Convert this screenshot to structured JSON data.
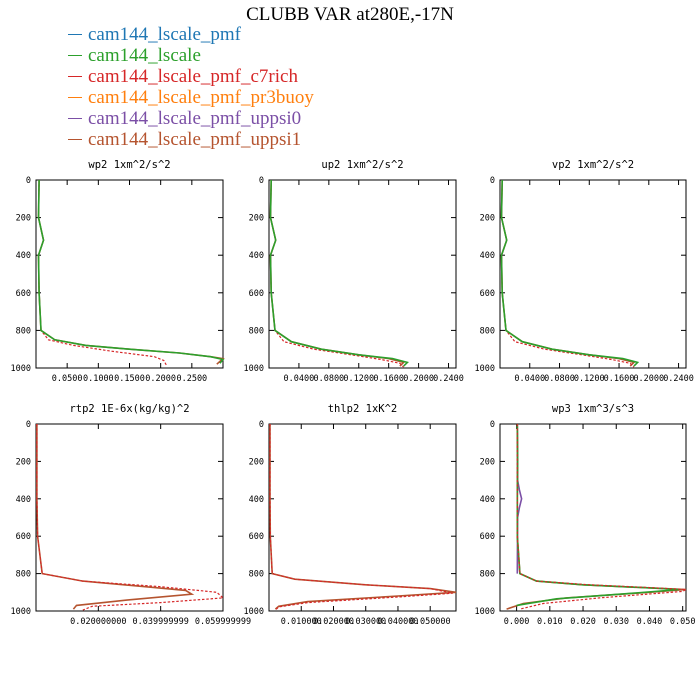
{
  "title": "CLUBB VAR at280E,-17N",
  "legend": [
    {
      "label": "cam144_lscale_pmf",
      "color": "#1f77b4"
    },
    {
      "label": "cam144_lscale",
      "color": "#2ca02c"
    },
    {
      "label": "cam144_lscale_pmf_c7rich",
      "color": "#d62728"
    },
    {
      "label": "cam144_lscale_pmf_pr3buoy",
      "color": "#ff7f0e"
    },
    {
      "label": "cam144_lscale_pmf_uppsi0",
      "color": "#7b4fa6"
    },
    {
      "label": "cam144_lscale_pmf_uppsi1",
      "color": "#b5542f"
    }
  ],
  "chart_data": [
    {
      "type": "line",
      "title": "wp2   1xm^2/s^2",
      "xlim": [
        0,
        0.3
      ],
      "ylim": [
        1000,
        0
      ],
      "xticks": [
        0.05,
        0.1,
        0.15,
        0.2,
        0.25
      ],
      "xtick_labels": [
        "0.0500",
        "0.1000",
        "0.1500",
        "0.2000",
        "0.2500"
      ],
      "yticks": [
        0,
        200,
        400,
        600,
        800,
        1000
      ],
      "series": [
        {
          "color": "#b5542f",
          "dash": false,
          "x": [
            0.005,
            0.004,
            0.012,
            0.004,
            0.005,
            0.008,
            0.03,
            0.08,
            0.15,
            0.23,
            0.28,
            0.3,
            0.29
          ],
          "y": [
            0,
            200,
            320,
            400,
            600,
            800,
            850,
            880,
            900,
            920,
            940,
            950,
            980
          ]
        },
        {
          "color": "#d62728",
          "dash": true,
          "x": [
            0.005,
            0.004,
            0.012,
            0.004,
            0.005,
            0.008,
            0.02,
            0.06,
            0.12,
            0.19,
            0.205,
            0.21
          ],
          "y": [
            0,
            200,
            320,
            400,
            600,
            800,
            850,
            880,
            910,
            940,
            960,
            990
          ]
        },
        {
          "color": "#2ca02c",
          "dash": false,
          "x": [
            0.005,
            0.004,
            0.012,
            0.004,
            0.005,
            0.008,
            0.03,
            0.08,
            0.15,
            0.23,
            0.28,
            0.3,
            0.295
          ],
          "y": [
            0,
            200,
            320,
            400,
            600,
            800,
            850,
            880,
            900,
            920,
            940,
            955,
            975
          ]
        }
      ]
    },
    {
      "type": "line",
      "title": "up2   1xm^2/s^2",
      "xlim": [
        0,
        0.25
      ],
      "ylim": [
        1000,
        0
      ],
      "xticks": [
        0.04,
        0.08,
        0.12,
        0.16,
        0.2,
        0.24
      ],
      "xtick_labels": [
        "0.0400",
        "0.0800",
        "0.1200",
        "0.1600",
        "0.2000",
        "0.2400"
      ],
      "yticks": [
        0,
        200,
        400,
        600,
        800,
        1000
      ],
      "series": [
        {
          "color": "#b5542f",
          "dash": false,
          "x": [
            0.003,
            0.002,
            0.009,
            0.002,
            0.003,
            0.008,
            0.03,
            0.07,
            0.12,
            0.16,
            0.18,
            0.175
          ],
          "y": [
            0,
            200,
            320,
            400,
            600,
            800,
            860,
            900,
            930,
            950,
            970,
            990
          ]
        },
        {
          "color": "#d62728",
          "dash": true,
          "x": [
            0.003,
            0.002,
            0.009,
            0.002,
            0.003,
            0.008,
            0.02,
            0.06,
            0.11,
            0.15,
            0.175,
            0.18
          ],
          "y": [
            0,
            200,
            320,
            400,
            600,
            800,
            860,
            900,
            930,
            955,
            975,
            995
          ]
        },
        {
          "color": "#2ca02c",
          "dash": false,
          "x": [
            0.003,
            0.002,
            0.009,
            0.002,
            0.003,
            0.008,
            0.03,
            0.07,
            0.12,
            0.165,
            0.185,
            0.18
          ],
          "y": [
            0,
            200,
            320,
            400,
            600,
            800,
            860,
            900,
            930,
            950,
            970,
            990
          ]
        }
      ]
    },
    {
      "type": "line",
      "title": "vp2   1xm^2/s^2",
      "xlim": [
        0,
        0.25
      ],
      "ylim": [
        1000,
        0
      ],
      "xticks": [
        0.04,
        0.08,
        0.12,
        0.16,
        0.2,
        0.24
      ],
      "xtick_labels": [
        "0.0400",
        "0.0800",
        "0.1200",
        "0.1600",
        "0.2000",
        "0.2400"
      ],
      "yticks": [
        0,
        200,
        400,
        600,
        800,
        1000
      ],
      "series": [
        {
          "color": "#b5542f",
          "dash": false,
          "x": [
            0.003,
            0.002,
            0.009,
            0.002,
            0.003,
            0.008,
            0.03,
            0.07,
            0.12,
            0.16,
            0.18,
            0.175
          ],
          "y": [
            0,
            200,
            320,
            400,
            600,
            800,
            860,
            900,
            930,
            950,
            970,
            990
          ]
        },
        {
          "color": "#d62728",
          "dash": true,
          "x": [
            0.003,
            0.002,
            0.009,
            0.002,
            0.003,
            0.008,
            0.02,
            0.06,
            0.11,
            0.15,
            0.175,
            0.18
          ],
          "y": [
            0,
            200,
            320,
            400,
            600,
            800,
            860,
            900,
            930,
            955,
            975,
            995
          ]
        },
        {
          "color": "#2ca02c",
          "dash": false,
          "x": [
            0.003,
            0.002,
            0.009,
            0.002,
            0.003,
            0.008,
            0.03,
            0.07,
            0.12,
            0.165,
            0.185,
            0.18
          ],
          "y": [
            0,
            200,
            320,
            400,
            600,
            800,
            860,
            900,
            930,
            950,
            970,
            990
          ]
        }
      ]
    },
    {
      "type": "line",
      "title": "rtp2   1E-6x(kg/kg)^2",
      "xlim": [
        0,
        0.06
      ],
      "ylim": [
        1000,
        0
      ],
      "xticks": [
        0.02,
        0.04,
        0.06
      ],
      "xtick_labels": [
        "0.020000000",
        "0.039999999",
        "0.059999999"
      ],
      "yticks": [
        0,
        200,
        400,
        600,
        800,
        1000
      ],
      "series": [
        {
          "color": "#b5542f",
          "dash": false,
          "x": [
            0.0003,
            0.0003,
            0.0003,
            0.0005,
            0.002,
            0.015,
            0.035,
            0.048,
            0.05,
            0.03,
            0.013,
            0.012
          ],
          "y": [
            0,
            200,
            400,
            600,
            800,
            840,
            870,
            890,
            910,
            940,
            970,
            990
          ]
        },
        {
          "color": "#d62728",
          "dash": true,
          "x": [
            0.0003,
            0.0003,
            0.0003,
            0.0005,
            0.002,
            0.015,
            0.04,
            0.058,
            0.06,
            0.04,
            0.018,
            0.015
          ],
          "y": [
            0,
            200,
            400,
            600,
            800,
            840,
            870,
            900,
            930,
            955,
            975,
            995
          ]
        }
      ]
    },
    {
      "type": "line",
      "title": "thlp2   1xK^2",
      "xlim": [
        0,
        0.058
      ],
      "ylim": [
        1000,
        0
      ],
      "xticks": [
        0.01,
        0.02,
        0.03,
        0.04,
        0.05
      ],
      "xtick_labels": [
        "0.010000",
        "0.020000",
        "0.030000",
        "0.040000",
        "0.050000"
      ],
      "yticks": [
        0,
        200,
        400,
        600,
        800,
        1000
      ],
      "series": [
        {
          "color": "#b5542f",
          "dash": false,
          "x": [
            0.0003,
            0.0003,
            0.0004,
            0.001,
            0.008,
            0.03,
            0.05,
            0.058,
            0.04,
            0.012,
            0.003,
            0.002
          ],
          "y": [
            0,
            400,
            600,
            800,
            830,
            860,
            880,
            900,
            920,
            950,
            975,
            990
          ]
        },
        {
          "color": "#d62728",
          "dash": true,
          "x": [
            0.0003,
            0.0003,
            0.0004,
            0.001,
            0.008,
            0.03,
            0.05,
            0.057,
            0.04,
            0.012,
            0.003,
            0.002
          ],
          "y": [
            0,
            400,
            600,
            800,
            830,
            860,
            880,
            905,
            925,
            955,
            978,
            995
          ]
        }
      ]
    },
    {
      "type": "line",
      "title": "wp3   1xm^3/s^3",
      "xlim": [
        -0.005,
        0.051
      ],
      "ylim": [
        1000,
        0
      ],
      "xticks": [
        0.0,
        0.01,
        0.02,
        0.03,
        0.04,
        0.05
      ],
      "xtick_labels": [
        "0.000",
        "0.010",
        "0.020",
        "0.030",
        "0.040",
        "0.050"
      ],
      "yticks": [
        0,
        200,
        400,
        600,
        800,
        1000
      ],
      "series": [
        {
          "color": "#7b4fa6",
          "dash": false,
          "x": [
            0.0002,
            0.0003,
            0.0008,
            0.0015,
            0.0008,
            0.0003,
            0.0002
          ],
          "y": [
            0,
            300,
            350,
            400,
            450,
            500,
            800
          ]
        },
        {
          "color": "#b5542f",
          "dash": false,
          "x": [
            0.0002,
            0.0003,
            0.0002,
            0.0002,
            0.001,
            0.006,
            0.02,
            0.038,
            0.051,
            0.04,
            0.015,
            0.002,
            -0.003
          ],
          "y": [
            0,
            200,
            400,
            600,
            800,
            840,
            860,
            875,
            885,
            900,
            930,
            960,
            990
          ]
        },
        {
          "color": "#2ca02c",
          "dash": false,
          "x": [
            0.0002,
            0.0003,
            0.0002,
            0.0002,
            0.001,
            0.006,
            0.02,
            0.038,
            0.049,
            0.035,
            0.012,
            0.0
          ],
          "y": [
            0,
            200,
            400,
            600,
            800,
            840,
            860,
            875,
            885,
            905,
            935,
            970
          ]
        },
        {
          "color": "#d62728",
          "dash": true,
          "x": [
            0.0002,
            0.0002,
            0.0002,
            0.001,
            0.006,
            0.022,
            0.04,
            0.051,
            0.05,
            0.025,
            0.008,
            0.001
          ],
          "y": [
            0,
            400,
            600,
            800,
            840,
            860,
            875,
            885,
            895,
            930,
            960,
            990
          ]
        }
      ]
    }
  ]
}
